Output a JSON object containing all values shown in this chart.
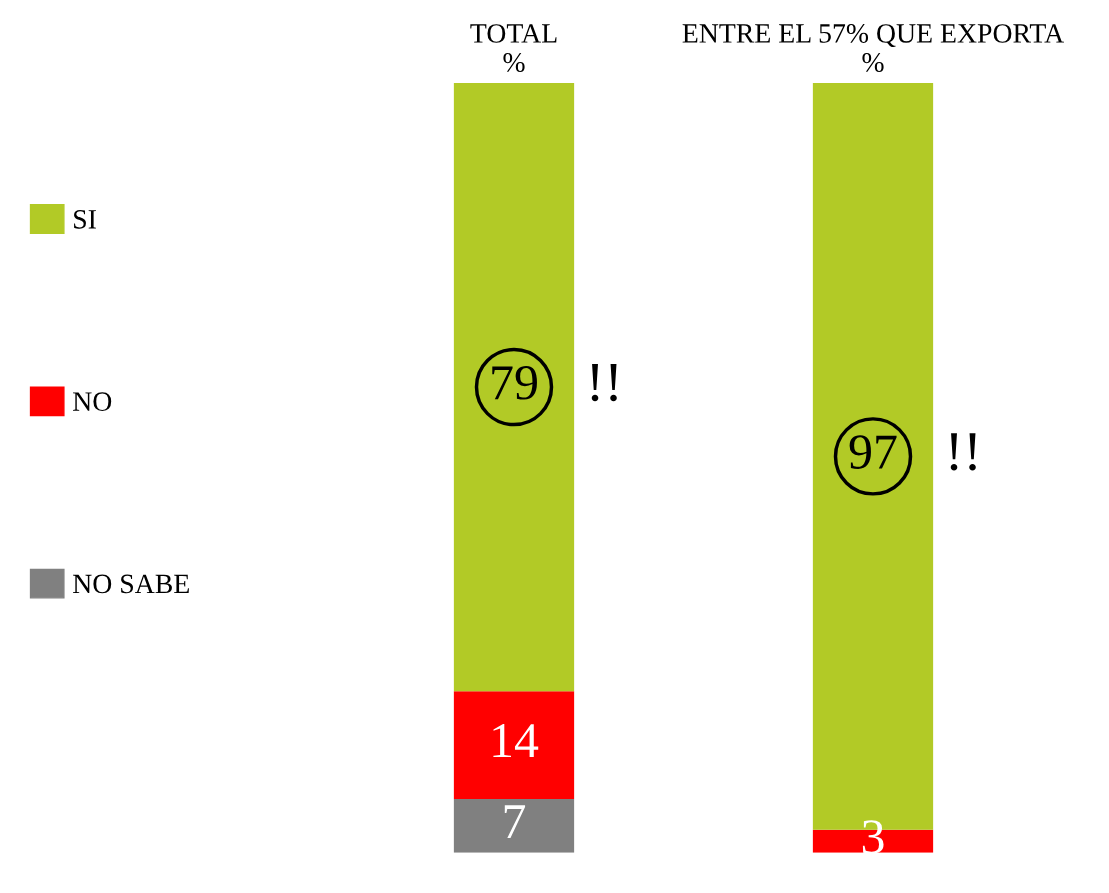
{
  "chart_data": {
    "type": "bar",
    "stacked": true,
    "categories": [
      "TOTAL\n%",
      "ENTRE EL 57% QUE EXPORTA\n%"
    ],
    "series": [
      {
        "name": "NO SABE",
        "color": "#808080",
        "values": [
          7,
          null
        ]
      },
      {
        "name": "NO",
        "color": "#ff0000",
        "values": [
          14,
          3
        ]
      },
      {
        "name": "SI",
        "color": "#b2ca26",
        "values": [
          79,
          97
        ]
      }
    ],
    "ylim": [
      0,
      100
    ],
    "data_labels": true,
    "legend": "left",
    "grid": false,
    "annotations": [
      "!!",
      "!!"
    ]
  }
}
